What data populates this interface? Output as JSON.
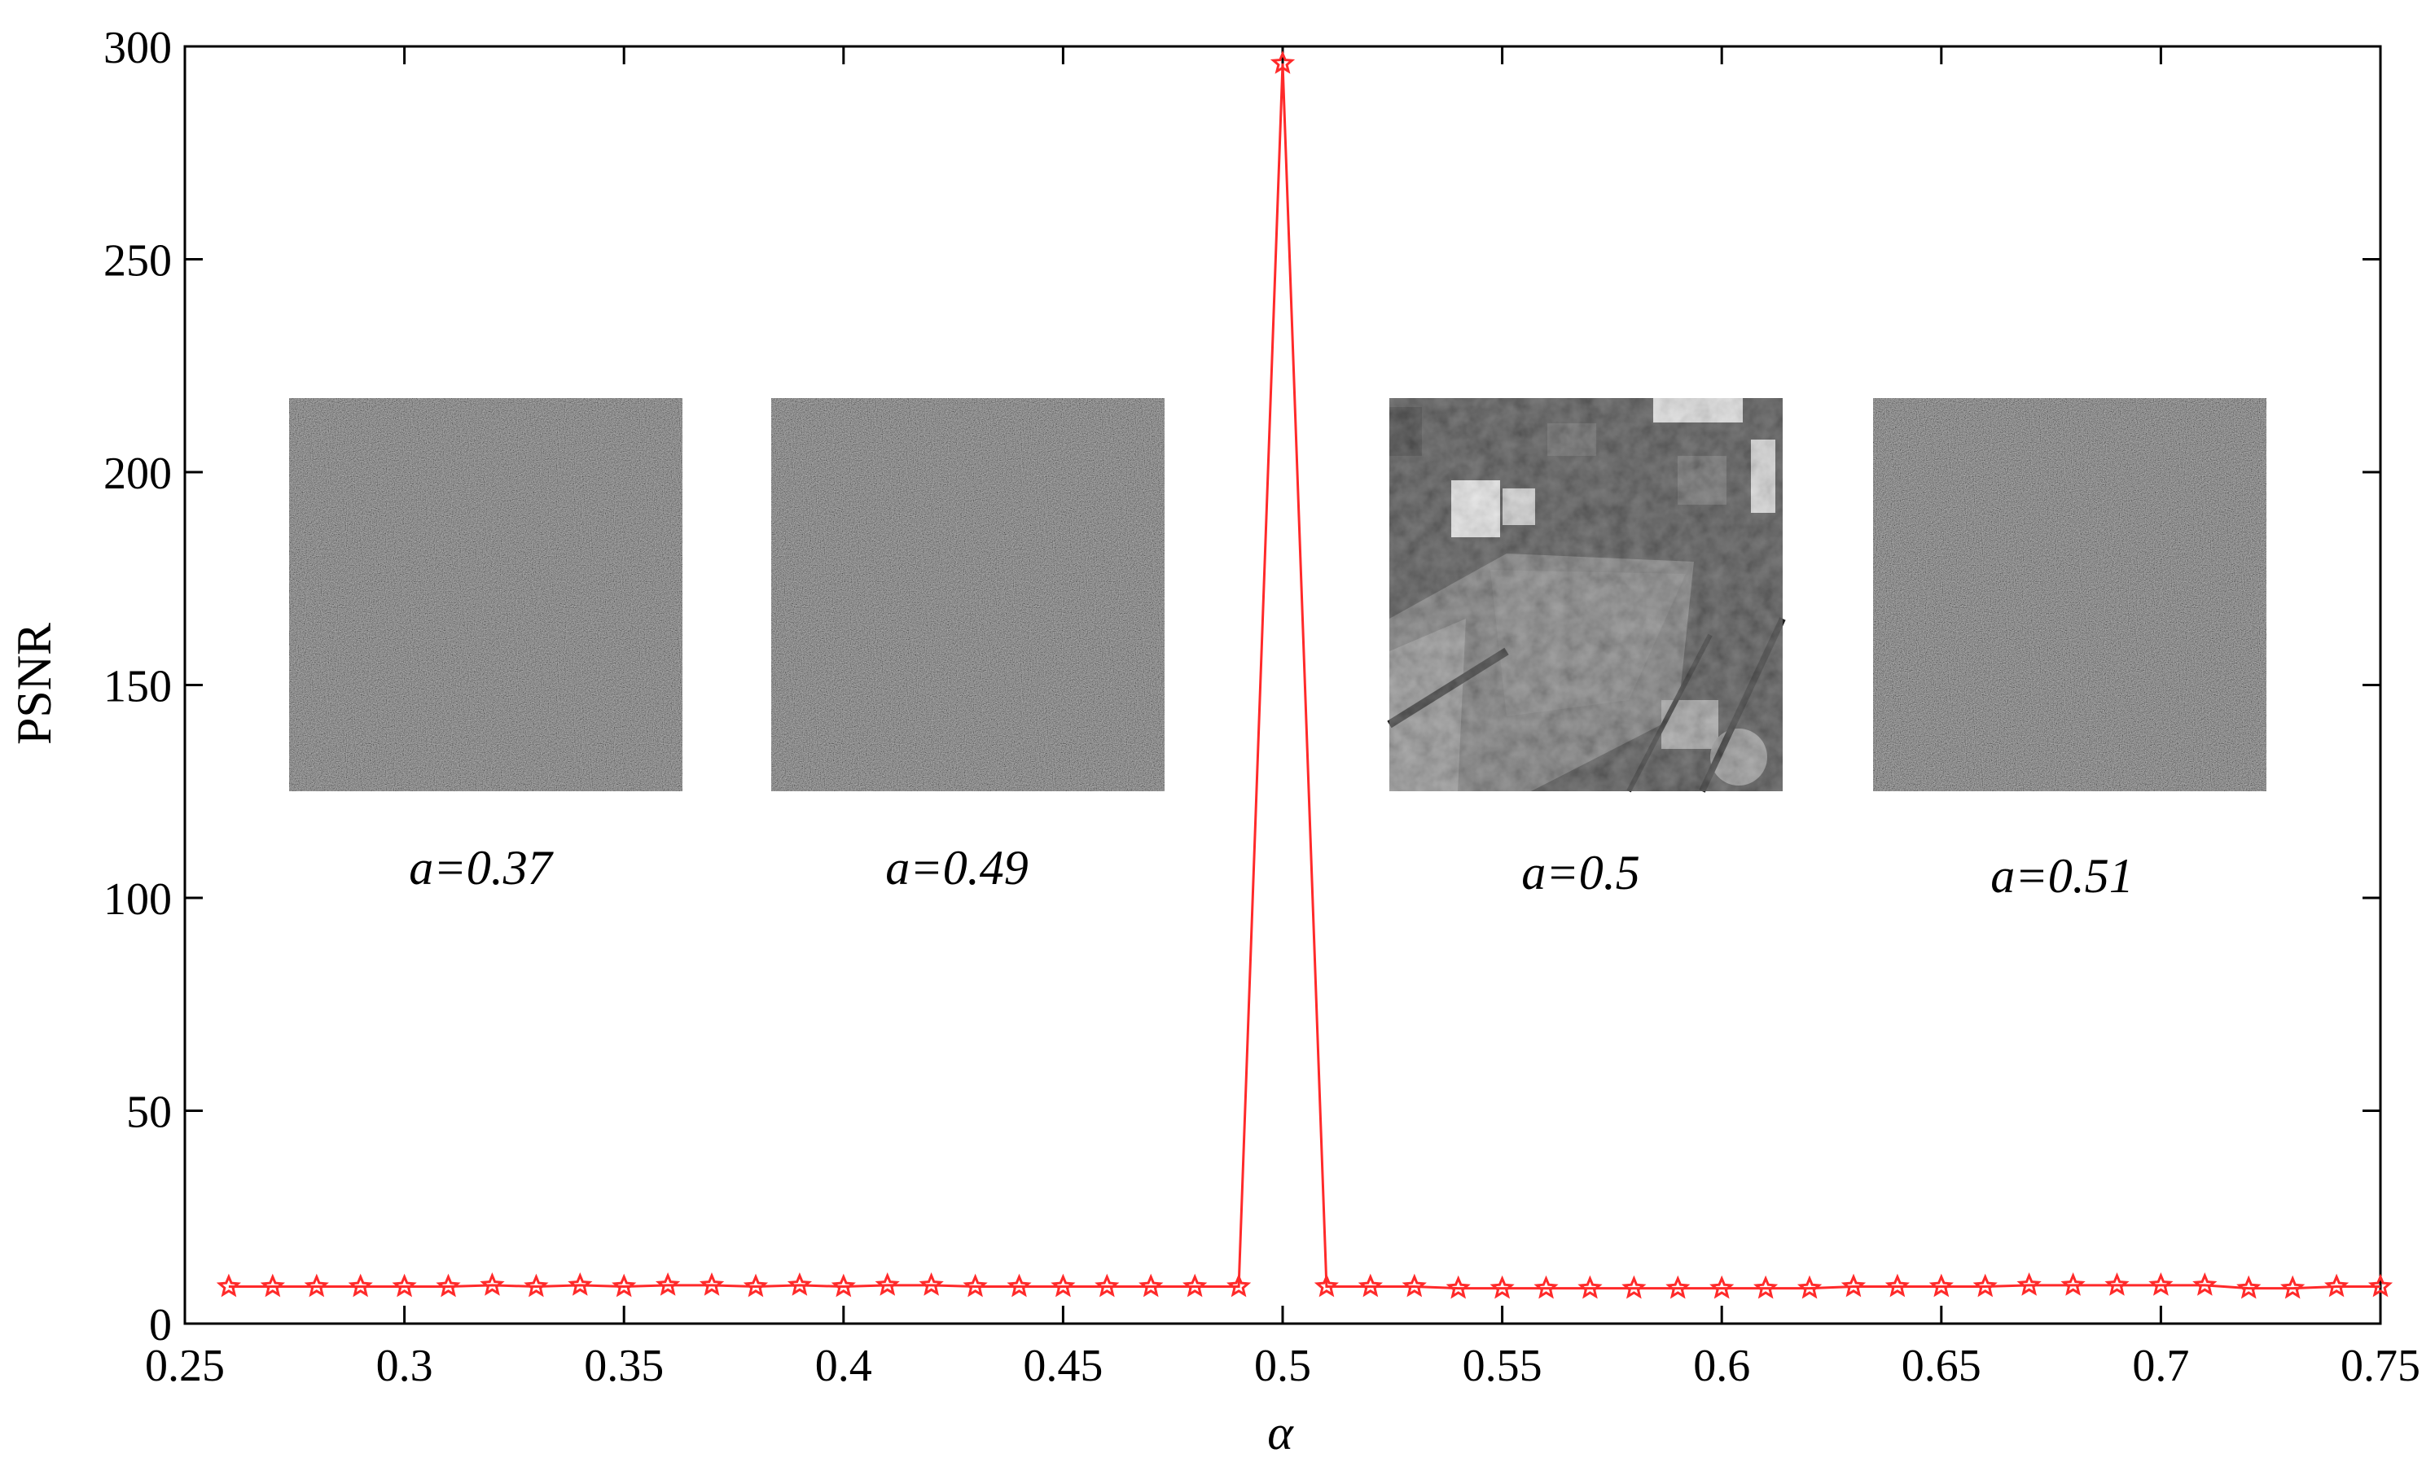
{
  "chart_data": {
    "type": "line",
    "xlabel": "α",
    "ylabel": "PSNR",
    "xlim": [
      0.25,
      0.75
    ],
    "ylim": [
      0,
      300
    ],
    "xticks": [
      0.25,
      0.3,
      0.35,
      0.4,
      0.45,
      0.5,
      0.55,
      0.6,
      0.65,
      0.7,
      0.75
    ],
    "xtick_labels": [
      "0.25",
      "0.3",
      "0.35",
      "0.4",
      "0.45",
      "0.5",
      "0.55",
      "0.6",
      "0.65",
      "0.7",
      "0.75"
    ],
    "yticks": [
      0,
      50,
      100,
      150,
      200,
      250,
      300
    ],
    "ytick_labels": [
      "0",
      "50",
      "100",
      "150",
      "200",
      "250",
      "300"
    ],
    "grid": false,
    "series": [
      {
        "color": "#ff2a2a",
        "marker": "star",
        "x": [
          0.26,
          0.27,
          0.28,
          0.29,
          0.3,
          0.31,
          0.32,
          0.33,
          0.34,
          0.35,
          0.36,
          0.37,
          0.38,
          0.39,
          0.4,
          0.41,
          0.42,
          0.43,
          0.44,
          0.45,
          0.46,
          0.47,
          0.48,
          0.49,
          0.5,
          0.51,
          0.52,
          0.53,
          0.54,
          0.55,
          0.56,
          0.57,
          0.58,
          0.59,
          0.6,
          0.61,
          0.62,
          0.63,
          0.64,
          0.65,
          0.66,
          0.67,
          0.68,
          0.69,
          0.7,
          0.71,
          0.72,
          0.73,
          0.74,
          0.75
        ],
        "y": [
          8.7,
          8.7,
          8.7,
          8.7,
          8.7,
          8.7,
          9.0,
          8.7,
          9.0,
          8.7,
          9.0,
          9.0,
          8.7,
          9.0,
          8.7,
          9.0,
          9.0,
          8.7,
          8.7,
          8.7,
          8.7,
          8.7,
          8.7,
          8.7,
          296,
          8.7,
          8.7,
          8.7,
          8.3,
          8.3,
          8.3,
          8.3,
          8.3,
          8.3,
          8.3,
          8.3,
          8.3,
          8.7,
          8.7,
          8.7,
          8.7,
          9.0,
          9.0,
          9.0,
          9.0,
          9.0,
          8.3,
          8.3,
          8.7,
          8.7
        ]
      }
    ],
    "insets": [
      {
        "caption": "a=0.37",
        "kind": "noise"
      },
      {
        "caption": "a=0.49",
        "kind": "noise"
      },
      {
        "caption": "a=0.5",
        "kind": "aerial-image"
      },
      {
        "caption": "a=0.51",
        "kind": "noise"
      }
    ]
  }
}
